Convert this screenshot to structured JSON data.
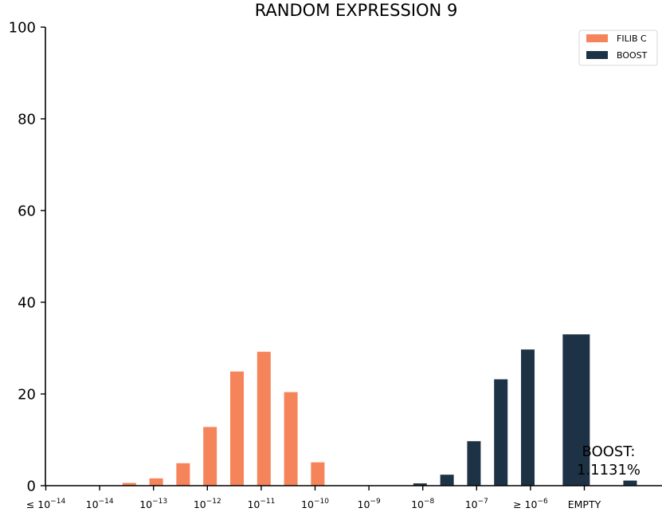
{
  "chart_data": {
    "type": "bar",
    "title": "RANDOM EXPRESSION 9",
    "xlabel": "",
    "ylabel": "",
    "ylim": [
      0,
      100
    ],
    "yticks": [
      "0",
      "20",
      "40",
      "60",
      "80",
      "100"
    ],
    "grid": false,
    "legend_position": "top-right",
    "categories": [
      {
        "base": "≤ 10",
        "exp": "−14"
      },
      {
        "base": "10",
        "exp": "−14"
      },
      {
        "base": "10",
        "exp": "−13"
      },
      {
        "base": "10",
        "exp": "−12"
      },
      {
        "base": "10",
        "exp": "−11"
      },
      {
        "base": "10",
        "exp": "−10"
      },
      {
        "base": "10",
        "exp": "−9"
      },
      {
        "base": "10",
        "exp": "−8"
      },
      {
        "base": "10",
        "exp": "−7"
      },
      {
        "base": "≥ 10",
        "exp": "−6"
      },
      {
        "base": "EMPTY",
        "exp": ""
      }
    ],
    "series": [
      {
        "name": "FILIB C",
        "color": "#f5845a",
        "points": [
          {
            "x": 1.55,
            "y": 0.6
          },
          {
            "x": 2.05,
            "y": 1.6
          },
          {
            "x": 2.55,
            "y": 4.9
          },
          {
            "x": 3.05,
            "y": 12.8
          },
          {
            "x": 3.55,
            "y": 24.9
          },
          {
            "x": 4.05,
            "y": 29.2
          },
          {
            "x": 4.55,
            "y": 20.4
          },
          {
            "x": 5.05,
            "y": 5.1
          }
        ]
      },
      {
        "name": "BOOST",
        "color": "#1e3246",
        "points": [
          {
            "x": 6.95,
            "y": 0.5
          },
          {
            "x": 7.45,
            "y": 2.4
          },
          {
            "x": 7.95,
            "y": 9.7
          },
          {
            "x": 8.45,
            "y": 23.2
          },
          {
            "x": 8.95,
            "y": 29.7
          },
          {
            "x": 9.85,
            "y": 33.0,
            "wide": true
          },
          {
            "x": 10.85,
            "y": 1.1131
          }
        ]
      }
    ],
    "annotations": [
      "BOOST:",
      "1.1131%"
    ]
  }
}
